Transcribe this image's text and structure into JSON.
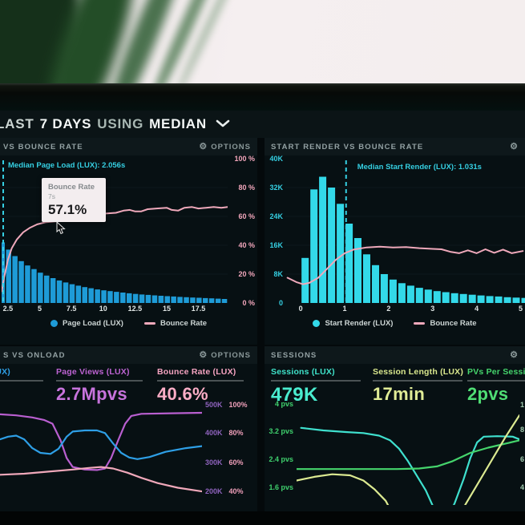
{
  "header": {
    "segments": [
      "LAST",
      "7 DAYS",
      "USING",
      "MEDIAN"
    ]
  },
  "panels": {
    "pageload": {
      "title": "VS BOUNCE RATE",
      "options_label": "OPTIONS",
      "median_label": "Median Page Load (LUX): 2.056s",
      "tooltip": {
        "title": "Bounce Rate",
        "subtitle": "7s",
        "value": "57.1%"
      },
      "legend": [
        {
          "label": "Page Load (LUX)"
        },
        {
          "label": "Bounce Rate"
        }
      ]
    },
    "startrender": {
      "title": "START RENDER VS BOUNCE RATE",
      "median_label": "Median Start Render (LUX): 1.031s",
      "legend": [
        {
          "label": "Start Render (LUX)"
        },
        {
          "label": "Bounce Rate"
        }
      ]
    },
    "onload": {
      "title": "S VS ONLOAD",
      "options_label": "OPTIONS",
      "metrics": [
        {
          "label": "(LUX)",
          "value": ""
        },
        {
          "label": "Page Views (LUX)",
          "value": "2.7Mpvs"
        },
        {
          "label": "Bounce Rate (LUX)",
          "value": "40.6%"
        }
      ],
      "right_axis": [
        [
          "500K",
          "100%"
        ],
        [
          "400K",
          "80%"
        ],
        [
          "300K",
          "60%"
        ],
        [
          "200K",
          "40%"
        ]
      ]
    },
    "sessions": {
      "title": "SESSIONS",
      "metrics": [
        {
          "label": "Sessions (LUX)",
          "value": "479K"
        },
        {
          "label": "Session Length (LUX)",
          "value": "17min"
        },
        {
          "label": "PVs Per Session",
          "value": "2pvs"
        }
      ],
      "y_labels": [
        "4 pvs",
        "3.2 pvs",
        "2.4 pvs",
        "1.6 pvs"
      ],
      "right_axis_clipped": [
        "1",
        "8",
        "6",
        "4"
      ]
    }
  },
  "colors": {
    "pageload_bars": "#1e9bd7",
    "startrender_bars": "#33d9e9",
    "bounce_line": "#efa9bb",
    "median_marker": "#35cfe2",
    "pageviews_line": "#b95fd0",
    "onload_line": "#2e9fe6",
    "sessions_line": "#3fe0ce",
    "session_length_line": "#dcea91",
    "pvs_line": "#45d46c"
  },
  "chart_data": [
    {
      "id": "pageload",
      "type": "bar",
      "title": "VS BOUNCE RATE (page load time histogram, seconds)",
      "xlim": [
        2,
        19.8
      ],
      "bar_ylim": [
        0,
        1
      ],
      "grid_y": [
        0.2,
        0.4,
        0.6,
        0.8
      ],
      "bars": {
        "name": "Page Load (LUX)",
        "color": "#1e9bd7",
        "x_start": 2.05,
        "x_step": 0.5,
        "values": [
          0.42,
          0.37,
          0.325,
          0.29,
          0.26,
          0.235,
          0.21,
          0.19,
          0.172,
          0.156,
          0.142,
          0.13,
          0.12,
          0.11,
          0.102,
          0.094,
          0.088,
          0.082,
          0.077,
          0.072,
          0.067,
          0.063,
          0.059,
          0.056,
          0.053,
          0.05,
          0.047,
          0.045,
          0.042,
          0.04,
          0.038,
          0.036,
          0.034,
          0.032,
          0.03,
          0.028
        ]
      },
      "line_ylim": [
        0,
        100
      ],
      "line": {
        "name": "Bounce Rate",
        "color": "#efa9bb",
        "points": [
          [
            2,
            8
          ],
          [
            2.2,
            18
          ],
          [
            2.5,
            30
          ],
          [
            2.8,
            38
          ],
          [
            3.2,
            44
          ],
          [
            3.7,
            49
          ],
          [
            4.2,
            52
          ],
          [
            4.8,
            54.5
          ],
          [
            5.5,
            56
          ],
          [
            6.2,
            56.5
          ],
          [
            7,
            57.1
          ],
          [
            7.8,
            58.5
          ],
          [
            8.6,
            60
          ],
          [
            9.4,
            61
          ],
          [
            10.2,
            62
          ],
          [
            11,
            62.5
          ],
          [
            11.6,
            64
          ],
          [
            12.1,
            64.5
          ],
          [
            12.5,
            63.5
          ],
          [
            13,
            63.5
          ],
          [
            13.5,
            65
          ],
          [
            14.2,
            65.5
          ],
          [
            15,
            66
          ],
          [
            15.4,
            64.5
          ],
          [
            15.9,
            64
          ],
          [
            16.4,
            66
          ],
          [
            17,
            66.5
          ],
          [
            17.5,
            65.5
          ],
          [
            18.1,
            66
          ],
          [
            18.7,
            66.5
          ],
          [
            19.3,
            66
          ],
          [
            19.8,
            66.5
          ]
        ]
      },
      "median": {
        "x": 2.056,
        "label": "Median Page Load (LUX): 2.056s",
        "color": "#35cfe2"
      },
      "xticks": [
        {
          "v": 2.5,
          "label": "2.5"
        },
        {
          "v": 5,
          "label": "5"
        },
        {
          "v": 7.5,
          "label": "7.5"
        },
        {
          "v": 10,
          "label": "10"
        },
        {
          "v": 12.5,
          "label": "12.5"
        },
        {
          "v": 15,
          "label": "15"
        },
        {
          "v": 17.5,
          "label": "17.5"
        }
      ],
      "yticks_right": [
        {
          "v": 100,
          "label": "100 %"
        },
        {
          "v": 80,
          "label": "80 %"
        },
        {
          "v": 60,
          "label": "60 %"
        },
        {
          "v": 40,
          "label": "40 %"
        },
        {
          "v": 20,
          "label": "20 %"
        },
        {
          "v": 0,
          "label": "0 %"
        }
      ]
    },
    {
      "id": "startrender",
      "type": "bar",
      "title": "START RENDER VS BOUNCE RATE (start render histogram, seconds vs sessions K)",
      "xlim": [
        -0.35,
        5.1
      ],
      "bar_ylim": [
        0,
        40
      ],
      "grid_y": [
        0.2,
        0.4,
        0.6,
        0.8
      ],
      "bars": {
        "name": "Start Render (LUX)",
        "color": "#33d9e9",
        "x_start": 0.1,
        "x_step": 0.2,
        "values": [
          12.5,
          31.5,
          35,
          32,
          27.5,
          22,
          18,
          13.5,
          10.5,
          8,
          6.5,
          5.5,
          4.8,
          4.2,
          3.7,
          3.3,
          3.0,
          2.7,
          2.5,
          2.3,
          2.1,
          1.9,
          1.8,
          1.6,
          1.5,
          1.4,
          1.3,
          1.2
        ]
      },
      "line_ylim": [
        0,
        40
      ],
      "line": {
        "name": "Bounce Rate",
        "color": "#efa9bb",
        "points": [
          [
            -0.3,
            7
          ],
          [
            -0.1,
            5.8
          ],
          [
            0.05,
            5.2
          ],
          [
            0.2,
            5.6
          ],
          [
            0.4,
            7
          ],
          [
            0.6,
            9.5
          ],
          [
            0.8,
            12
          ],
          [
            1.0,
            13.8
          ],
          [
            1.2,
            14.8
          ],
          [
            1.5,
            15.4
          ],
          [
            1.8,
            15.6
          ],
          [
            2.1,
            15.4
          ],
          [
            2.4,
            15.5
          ],
          [
            2.7,
            15.2
          ],
          [
            3.0,
            15.0
          ],
          [
            3.2,
            14.9
          ],
          [
            3.4,
            14.2
          ],
          [
            3.6,
            13.8
          ],
          [
            3.8,
            14.6
          ],
          [
            4.0,
            13.8
          ],
          [
            4.2,
            14.9
          ],
          [
            4.4,
            13.9
          ],
          [
            4.6,
            14.8
          ],
          [
            4.8,
            13.8
          ],
          [
            5.05,
            14.4
          ]
        ]
      },
      "median": {
        "x": 1.031,
        "label": "Median Start Render (LUX): 1.031s",
        "color": "#35cfe2"
      },
      "xticks": [
        {
          "v": 0,
          "label": "0"
        },
        {
          "v": 1,
          "label": "1"
        },
        {
          "v": 2,
          "label": "2"
        },
        {
          "v": 3,
          "label": "3"
        },
        {
          "v": 4,
          "label": "4"
        },
        {
          "v": 5,
          "label": "5"
        }
      ],
      "yticks_left": [
        {
          "v": 40,
          "label": "40K"
        },
        {
          "v": 32,
          "label": "32K"
        },
        {
          "v": 24,
          "label": "24K"
        },
        {
          "v": 16,
          "label": "16K"
        },
        {
          "v": 8,
          "label": "8K"
        },
        {
          "v": 0,
          "label": "0"
        }
      ]
    },
    {
      "id": "onload",
      "type": "line",
      "title": "S VS ONLOAD (7-day trends)",
      "xlim": [
        0,
        1
      ],
      "line_ylim": [
        0,
        1
      ],
      "series": [
        {
          "name": "Page Views (LUX)",
          "color": "#b95fd0",
          "width": 2.2,
          "points": [
            [
              0,
              0.87
            ],
            [
              0.08,
              0.86
            ],
            [
              0.16,
              0.84
            ],
            [
              0.22,
              0.815
            ],
            [
              0.26,
              0.78
            ],
            [
              0.3,
              0.62
            ],
            [
              0.33,
              0.45
            ],
            [
              0.36,
              0.365
            ],
            [
              0.42,
              0.34
            ],
            [
              0.48,
              0.335
            ],
            [
              0.52,
              0.35
            ],
            [
              0.55,
              0.45
            ],
            [
              0.585,
              0.62
            ],
            [
              0.62,
              0.78
            ],
            [
              0.65,
              0.855
            ],
            [
              0.7,
              0.875
            ],
            [
              0.85,
              0.88
            ],
            [
              1,
              0.885
            ]
          ]
        },
        {
          "name": "Onload (LUX)",
          "color": "#2e9fe6",
          "width": 2.2,
          "points": [
            [
              0,
              0.63
            ],
            [
              0.04,
              0.655
            ],
            [
              0.08,
              0.665
            ],
            [
              0.12,
              0.63
            ],
            [
              0.16,
              0.545
            ],
            [
              0.2,
              0.5
            ],
            [
              0.25,
              0.49
            ],
            [
              0.29,
              0.54
            ],
            [
              0.33,
              0.655
            ],
            [
              0.36,
              0.705
            ],
            [
              0.42,
              0.715
            ],
            [
              0.48,
              0.715
            ],
            [
              0.52,
              0.69
            ],
            [
              0.56,
              0.59
            ],
            [
              0.6,
              0.5
            ],
            [
              0.64,
              0.455
            ],
            [
              0.68,
              0.44
            ],
            [
              0.74,
              0.46
            ],
            [
              0.82,
              0.51
            ],
            [
              0.92,
              0.545
            ],
            [
              1,
              0.565
            ]
          ]
        },
        {
          "name": "Bounce Rate (LUX)",
          "color": "#f0a8ba",
          "width": 2.2,
          "points": [
            [
              0,
              0.29
            ],
            [
              0.12,
              0.3
            ],
            [
              0.24,
              0.32
            ],
            [
              0.36,
              0.34
            ],
            [
              0.44,
              0.355
            ],
            [
              0.5,
              0.365
            ],
            [
              0.56,
              0.35
            ],
            [
              0.63,
              0.31
            ],
            [
              0.7,
              0.26
            ],
            [
              0.78,
              0.21
            ],
            [
              0.88,
              0.165
            ],
            [
              1,
              0.13
            ]
          ]
        }
      ]
    },
    {
      "id": "sessions",
      "type": "line",
      "title": "SESSIONS (7-day trends, pvs scale)",
      "xlim": [
        0,
        1
      ],
      "line_ylim": [
        0,
        1
      ],
      "series": [
        {
          "name": "Sessions (LUX)",
          "color": "#3fe0ce",
          "width": 2.2,
          "points": [
            [
              0.02,
              0.74
            ],
            [
              0.12,
              0.715
            ],
            [
              0.22,
              0.7
            ],
            [
              0.3,
              0.69
            ],
            [
              0.37,
              0.665
            ],
            [
              0.42,
              0.62
            ],
            [
              0.46,
              0.54
            ],
            [
              0.5,
              0.42
            ],
            [
              0.54,
              0.28
            ],
            [
              0.58,
              0.14
            ],
            [
              0.62,
              -0.05
            ],
            [
              0.68,
              -0.12
            ],
            [
              0.71,
              0.02
            ],
            [
              0.75,
              0.25
            ],
            [
              0.78,
              0.45
            ],
            [
              0.81,
              0.6
            ],
            [
              0.84,
              0.655
            ],
            [
              0.9,
              0.66
            ],
            [
              0.97,
              0.655
            ],
            [
              1,
              0.63
            ]
          ]
        },
        {
          "name": "PVs Per Session",
          "color": "#45d46c",
          "width": 2.2,
          "points": [
            [
              0,
              0.345
            ],
            [
              0.25,
              0.345
            ],
            [
              0.45,
              0.345
            ],
            [
              0.55,
              0.35
            ],
            [
              0.63,
              0.37
            ],
            [
              0.7,
              0.42
            ],
            [
              0.78,
              0.5
            ],
            [
              0.86,
              0.55
            ],
            [
              0.94,
              0.59
            ],
            [
              1,
              0.62
            ]
          ]
        },
        {
          "name": "Session Length (LUX)",
          "color": "#dcea91",
          "width": 2.2,
          "points": [
            [
              0,
              0.235
            ],
            [
              0.08,
              0.27
            ],
            [
              0.16,
              0.295
            ],
            [
              0.24,
              0.285
            ],
            [
              0.3,
              0.235
            ],
            [
              0.35,
              0.15
            ],
            [
              0.4,
              0.04
            ],
            [
              0.44,
              -0.12
            ],
            [
              0.55,
              -0.38
            ],
            [
              0.68,
              -0.28
            ],
            [
              0.74,
              -0.06
            ],
            [
              0.79,
              0.12
            ],
            [
              0.84,
              0.3
            ],
            [
              0.89,
              0.48
            ],
            [
              0.94,
              0.66
            ],
            [
              1,
              0.86
            ]
          ]
        }
      ]
    }
  ]
}
